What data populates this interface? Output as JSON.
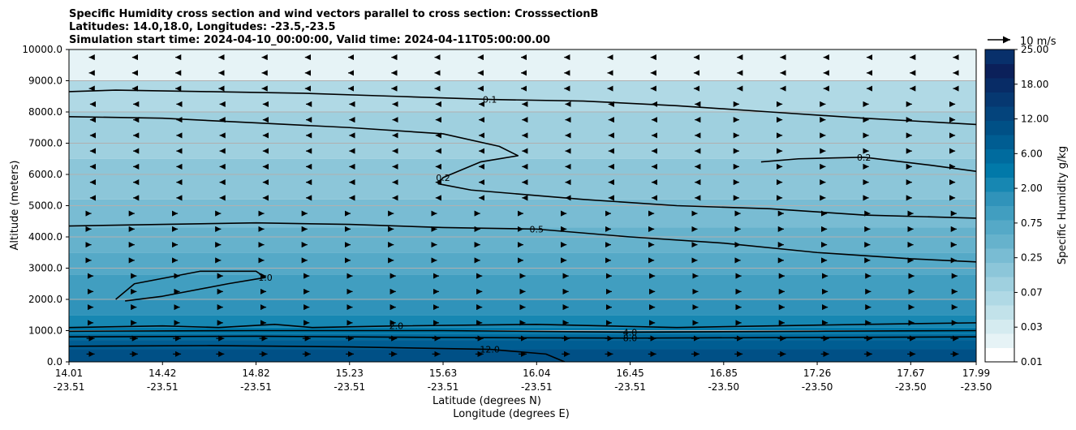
{
  "chart_data": {
    "type": "contour",
    "title_lines": [
      "Specific Humidity cross section and wind vectors parallel to cross section: CrosssectionB",
      "Latitudes: 14.0,18.0, Longitudes: -23.5,-23.5",
      "Simulation start time: 2024-04-10_00:00:00, Valid time: 2024-04-11T05:00:00.00"
    ],
    "ylabel": "Altitude (meters)",
    "xlabel_lat": "Latitude (degrees N)",
    "xlabel_lon": "Longitude (degrees E)",
    "ylim": [
      0,
      10000
    ],
    "y_ticks": [
      0,
      1000,
      2000,
      3000,
      4000,
      5000,
      6000,
      7000,
      8000,
      9000,
      10000
    ],
    "y_tick_labels": [
      "0.0",
      "1000.0",
      "2000.0",
      "3000.0",
      "4000.0",
      "5000.0",
      "6000.0",
      "7000.0",
      "8000.0",
      "9000.0",
      "10000.0"
    ],
    "xlim": [
      0,
      9.7
    ],
    "x_tick_positions": [
      0,
      1,
      2,
      3,
      4,
      5,
      6,
      7,
      8,
      9,
      9.7
    ],
    "x_tick_lat": [
      "14.01",
      "14.42",
      "14.82",
      "15.23",
      "15.63",
      "16.04",
      "16.45",
      "16.85",
      "17.26",
      "17.67",
      "17.99"
    ],
    "x_tick_lon": [
      "-23.51",
      "-23.51",
      "-23.51",
      "-23.51",
      "-23.51",
      "-23.51",
      "-23.51",
      "-23.50",
      "-23.50",
      "-23.50",
      "-23.50"
    ],
    "colorbar": {
      "label": "Specific Humidity g/kg",
      "tick_labels": [
        "0.01",
        "0.03",
        "0.07",
        "0.25",
        "0.75",
        "2.00",
        "6.00",
        "12.00",
        "18.00",
        "25.00"
      ],
      "colors": [
        "#ffffff",
        "#e6f3f6",
        "#d5ebf0",
        "#c2e2ea",
        "#b0d9e5",
        "#9fd0df",
        "#8cc6d9",
        "#79bcd3",
        "#66b2cc",
        "#55a9c7",
        "#419ec0",
        "#3093ba",
        "#1787b2",
        "#0179a9",
        "#006b9e",
        "#005d92",
        "#005086",
        "#04447c",
        "#063871",
        "#082c66",
        "#0b205a",
        "#08306b"
      ]
    },
    "humidity_layers": [
      {
        "top": 10000,
        "value": 0.02
      },
      {
        "top": 9000,
        "value": 0.05
      },
      {
        "top": 8000,
        "value": 0.1
      },
      {
        "top": 6500,
        "value": 0.2
      },
      {
        "top": 5200,
        "value": 0.3
      },
      {
        "top": 4300,
        "value": 0.5
      },
      {
        "top": 3500,
        "value": 0.7
      },
      {
        "top": 2800,
        "value": 1.0
      },
      {
        "top": 2000,
        "value": 1.5
      },
      {
        "top": 1500,
        "value": 2.5
      },
      {
        "top": 1100,
        "value": 4.0
      },
      {
        "top": 900,
        "value": 6.0
      },
      {
        "top": 700,
        "value": 8.0
      },
      {
        "top": 400,
        "value": 12.0
      }
    ],
    "contours": [
      {
        "label": "0.1",
        "points": [
          [
            0,
            8650
          ],
          [
            0.5,
            8700
          ],
          [
            1.5,
            8650
          ],
          [
            2.5,
            8600
          ],
          [
            3.5,
            8500
          ],
          [
            4.5,
            8400
          ],
          [
            5.5,
            8350
          ],
          [
            6.5,
            8200
          ],
          [
            7.5,
            8000
          ],
          [
            8.5,
            7800
          ],
          [
            9.7,
            7600
          ]
        ]
      },
      {
        "label": "0.2",
        "points": [
          [
            0,
            7850
          ],
          [
            1,
            7800
          ],
          [
            2,
            7650
          ],
          [
            3,
            7500
          ],
          [
            4,
            7300
          ],
          [
            4.6,
            6900
          ],
          [
            4.8,
            6600
          ],
          [
            4.4,
            6400
          ],
          [
            4.0,
            5900
          ],
          [
            3.95,
            5700
          ],
          [
            4.3,
            5500
          ],
          [
            5.5,
            5200
          ],
          [
            6.5,
            5000
          ],
          [
            7.5,
            4900
          ],
          [
            8.5,
            4700
          ],
          [
            9.7,
            4600
          ]
        ]
      },
      {
        "label": "0.2",
        "points": [
          [
            7.4,
            6400
          ],
          [
            7.8,
            6500
          ],
          [
            8.5,
            6550
          ],
          [
            9.2,
            6300
          ],
          [
            9.7,
            6100
          ]
        ]
      },
      {
        "label": "0.5",
        "points": [
          [
            0,
            4350
          ],
          [
            1,
            4400
          ],
          [
            2,
            4450
          ],
          [
            3,
            4400
          ],
          [
            4,
            4300
          ],
          [
            5,
            4250
          ],
          [
            6,
            4000
          ],
          [
            7,
            3800
          ],
          [
            8,
            3500
          ],
          [
            9,
            3300
          ],
          [
            9.7,
            3200
          ]
        ]
      },
      {
        "label": "1.0",
        "points": [
          [
            0.5,
            2000
          ],
          [
            0.7,
            2500
          ],
          [
            1.4,
            2900
          ],
          [
            2.0,
            2900
          ],
          [
            2.1,
            2700
          ],
          [
            1.7,
            2500
          ],
          [
            1.0,
            2100
          ],
          [
            0.6,
            1950
          ]
        ]
      },
      {
        "label": "2.0",
        "points": [
          [
            0,
            1100
          ],
          [
            1,
            1150
          ],
          [
            1.6,
            1100
          ],
          [
            2.2,
            1200
          ],
          [
            2.6,
            1100
          ],
          [
            3.5,
            1150
          ],
          [
            5,
            1200
          ],
          [
            6.5,
            1100
          ],
          [
            7.5,
            1150
          ],
          [
            8.5,
            1200
          ],
          [
            9.7,
            1250
          ]
        ]
      },
      {
        "label": "4.0",
        "points": [
          [
            0,
            980
          ],
          [
            2,
            1000
          ],
          [
            4,
            1000
          ],
          [
            6,
            950
          ],
          [
            8,
            980
          ],
          [
            9.7,
            1000
          ]
        ]
      },
      {
        "label": "8.0",
        "points": [
          [
            0,
            800
          ],
          [
            2,
            820
          ],
          [
            4,
            780
          ],
          [
            6,
            760
          ],
          [
            8,
            780
          ],
          [
            9.7,
            800
          ]
        ]
      },
      {
        "label": "12.0",
        "points": [
          [
            0,
            500
          ],
          [
            1.5,
            520
          ],
          [
            3,
            480
          ],
          [
            4.5,
            400
          ],
          [
            5.1,
            250
          ],
          [
            5.3,
            0
          ]
        ]
      }
    ],
    "wind_reference": "10 m/s"
  }
}
